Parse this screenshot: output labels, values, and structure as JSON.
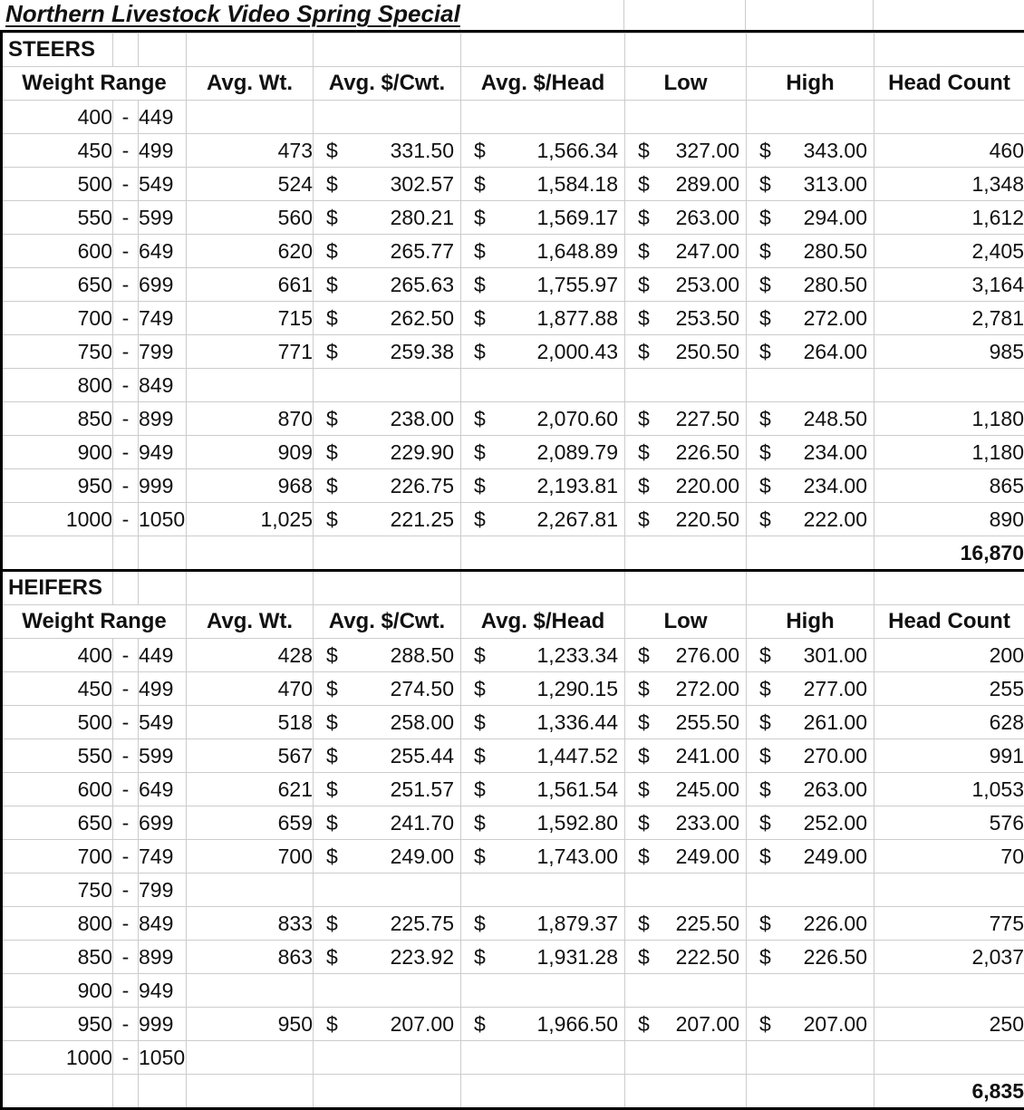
{
  "title": "Northern Livestock Video Spring Special",
  "currency_symbol": "$",
  "range_separator": "-",
  "columns": {
    "weight_range": "Weight Range",
    "avg_wt": "Avg. Wt.",
    "avg_cwt": "Avg. $/Cwt.",
    "avg_head": "Avg. $/Head",
    "low": "Low",
    "high": "High",
    "head_count": "Head Count"
  },
  "sections": [
    {
      "label": "STEERS",
      "rows": [
        {
          "range_low": "400",
          "range_high": "449",
          "avg_wt": "",
          "avg_cwt": "",
          "avg_head": "",
          "low": "",
          "high": "",
          "head_count": ""
        },
        {
          "range_low": "450",
          "range_high": "499",
          "avg_wt": "473",
          "avg_cwt": "331.50",
          "avg_head": "1,566.34",
          "low": "327.00",
          "high": "343.00",
          "head_count": "460"
        },
        {
          "range_low": "500",
          "range_high": "549",
          "avg_wt": "524",
          "avg_cwt": "302.57",
          "avg_head": "1,584.18",
          "low": "289.00",
          "high": "313.00",
          "head_count": "1,348"
        },
        {
          "range_low": "550",
          "range_high": "599",
          "avg_wt": "560",
          "avg_cwt": "280.21",
          "avg_head": "1,569.17",
          "low": "263.00",
          "high": "294.00",
          "head_count": "1,612"
        },
        {
          "range_low": "600",
          "range_high": "649",
          "avg_wt": "620",
          "avg_cwt": "265.77",
          "avg_head": "1,648.89",
          "low": "247.00",
          "high": "280.50",
          "head_count": "2,405"
        },
        {
          "range_low": "650",
          "range_high": "699",
          "avg_wt": "661",
          "avg_cwt": "265.63",
          "avg_head": "1,755.97",
          "low": "253.00",
          "high": "280.50",
          "head_count": "3,164"
        },
        {
          "range_low": "700",
          "range_high": "749",
          "avg_wt": "715",
          "avg_cwt": "262.50",
          "avg_head": "1,877.88",
          "low": "253.50",
          "high": "272.00",
          "head_count": "2,781"
        },
        {
          "range_low": "750",
          "range_high": "799",
          "avg_wt": "771",
          "avg_cwt": "259.38",
          "avg_head": "2,000.43",
          "low": "250.50",
          "high": "264.00",
          "head_count": "985"
        },
        {
          "range_low": "800",
          "range_high": "849",
          "avg_wt": "",
          "avg_cwt": "",
          "avg_head": "",
          "low": "",
          "high": "",
          "head_count": ""
        },
        {
          "range_low": "850",
          "range_high": "899",
          "avg_wt": "870",
          "avg_cwt": "238.00",
          "avg_head": "2,070.60",
          "low": "227.50",
          "high": "248.50",
          "head_count": "1,180"
        },
        {
          "range_low": "900",
          "range_high": "949",
          "avg_wt": "909",
          "avg_cwt": "229.90",
          "avg_head": "2,089.79",
          "low": "226.50",
          "high": "234.00",
          "head_count": "1,180"
        },
        {
          "range_low": "950",
          "range_high": "999",
          "avg_wt": "968",
          "avg_cwt": "226.75",
          "avg_head": "2,193.81",
          "low": "220.00",
          "high": "234.00",
          "head_count": "865"
        },
        {
          "range_low": "1000",
          "range_high": "1050",
          "avg_wt": "1,025",
          "avg_cwt": "221.25",
          "avg_head": "2,267.81",
          "low": "220.50",
          "high": "222.00",
          "head_count": "890"
        }
      ],
      "total_head_count": "16,870"
    },
    {
      "label": "HEIFERS",
      "rows": [
        {
          "range_low": "400",
          "range_high": "449",
          "avg_wt": "428",
          "avg_cwt": "288.50",
          "avg_head": "1,233.34",
          "low": "276.00",
          "high": "301.00",
          "head_count": "200"
        },
        {
          "range_low": "450",
          "range_high": "499",
          "avg_wt": "470",
          "avg_cwt": "274.50",
          "avg_head": "1,290.15",
          "low": "272.00",
          "high": "277.00",
          "head_count": "255"
        },
        {
          "range_low": "500",
          "range_high": "549",
          "avg_wt": "518",
          "avg_cwt": "258.00",
          "avg_head": "1,336.44",
          "low": "255.50",
          "high": "261.00",
          "head_count": "628"
        },
        {
          "range_low": "550",
          "range_high": "599",
          "avg_wt": "567",
          "avg_cwt": "255.44",
          "avg_head": "1,447.52",
          "low": "241.00",
          "high": "270.00",
          "head_count": "991"
        },
        {
          "range_low": "600",
          "range_high": "649",
          "avg_wt": "621",
          "avg_cwt": "251.57",
          "avg_head": "1,561.54",
          "low": "245.00",
          "high": "263.00",
          "head_count": "1,053"
        },
        {
          "range_low": "650",
          "range_high": "699",
          "avg_wt": "659",
          "avg_cwt": "241.70",
          "avg_head": "1,592.80",
          "low": "233.00",
          "high": "252.00",
          "head_count": "576"
        },
        {
          "range_low": "700",
          "range_high": "749",
          "avg_wt": "700",
          "avg_cwt": "249.00",
          "avg_head": "1,743.00",
          "low": "249.00",
          "high": "249.00",
          "head_count": "70"
        },
        {
          "range_low": "750",
          "range_high": "799",
          "avg_wt": "",
          "avg_cwt": "",
          "avg_head": "",
          "low": "",
          "high": "",
          "head_count": ""
        },
        {
          "range_low": "800",
          "range_high": "849",
          "avg_wt": "833",
          "avg_cwt": "225.75",
          "avg_head": "1,879.37",
          "low": "225.50",
          "high": "226.00",
          "head_count": "775"
        },
        {
          "range_low": "850",
          "range_high": "899",
          "avg_wt": "863",
          "avg_cwt": "223.92",
          "avg_head": "1,931.28",
          "low": "222.50",
          "high": "226.50",
          "head_count": "2,037"
        },
        {
          "range_low": "900",
          "range_high": "949",
          "avg_wt": "",
          "avg_cwt": "",
          "avg_head": "",
          "low": "",
          "high": "",
          "head_count": ""
        },
        {
          "range_low": "950",
          "range_high": "999",
          "avg_wt": "950",
          "avg_cwt": "207.00",
          "avg_head": "1,966.50",
          "low": "207.00",
          "high": "207.00",
          "head_count": "250"
        },
        {
          "range_low": "1000",
          "range_high": "1050",
          "avg_wt": "",
          "avg_cwt": "",
          "avg_head": "",
          "low": "",
          "high": "",
          "head_count": ""
        }
      ],
      "total_head_count": "6,835"
    }
  ]
}
